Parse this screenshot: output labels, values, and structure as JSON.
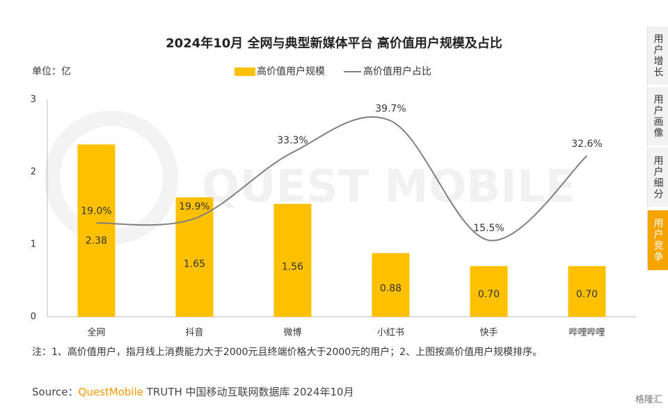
{
  "chart_data": {
    "type": "bar",
    "title": "2024年10月 全网与典型新媒体平台 高价值用户规模及占比",
    "unit_label": "单位：亿",
    "categories": [
      "全网",
      "抖音",
      "微博",
      "小红书",
      "快手",
      "哔哩哔哩"
    ],
    "series": [
      {
        "name": "高价值用户规模",
        "type": "bar",
        "color": "#FFC000",
        "values": [
          2.38,
          1.65,
          1.56,
          0.88,
          0.7,
          0.7
        ],
        "value_labels": [
          "2.38",
          "1.65",
          "1.56",
          "0.88",
          "0.70",
          "0.70"
        ]
      },
      {
        "name": "高价值用户占比",
        "type": "line",
        "axis": "y2",
        "color": "#7f7f7f",
        "values": [
          19.0,
          19.9,
          33.3,
          39.7,
          15.5,
          32.6
        ],
        "value_labels": [
          "19.0%",
          "19.9%",
          "33.3%",
          "39.7%",
          "15.5%",
          "32.6%"
        ]
      }
    ],
    "ylim": [
      0,
      3
    ],
    "yticks": [
      0,
      1,
      2,
      3
    ],
    "y2lim": [
      0,
      44
    ],
    "legend": "top",
    "watermark": "QUEST MOBILE"
  },
  "note": "注：1、高价值用户，指月线上消费能力大于2000元且终端价格大于2000元的用户；2、上图按高价值用户规模排序。",
  "source": {
    "prefix": "Source：",
    "brand": "QuestMobile",
    "rest": "TRUTH 中国移动互联网数据库 2024年10月"
  },
  "tabs": [
    "用户增长",
    "用户画像",
    "用户细分",
    "用户竞争"
  ],
  "corner_logo": "格隆汇"
}
